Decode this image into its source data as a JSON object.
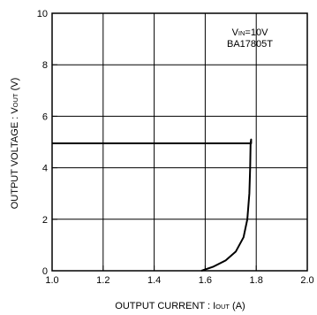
{
  "chart_data": {
    "type": "line",
    "xlabel": {
      "main": "OUTPUT  CURRENT : I",
      "sub": "OUT",
      "unit": " (A)"
    },
    "ylabel": {
      "main": "OUTPUT VOLTAGE : V",
      "sub": "OUT",
      "unit": " (V)"
    },
    "xlim": [
      1.0,
      2.0
    ],
    "ylim": [
      0,
      10
    ],
    "x_ticks": [
      "1.0",
      "1.2",
      "1.4",
      "1.6",
      "1.8",
      "2.0"
    ],
    "y_ticks": [
      "0",
      "2",
      "4",
      "6",
      "8",
      "10"
    ],
    "x_tick_values": [
      1.0,
      1.2,
      1.4,
      1.6,
      1.8,
      2.0
    ],
    "y_tick_values": [
      0,
      2,
      4,
      6,
      8,
      10
    ],
    "grid": true,
    "annotations": [
      {
        "main": "V",
        "sub": "IN",
        "rest": "=10V"
      },
      {
        "main": "BA17805T",
        "sub": "",
        "rest": ""
      }
    ],
    "series": [
      {
        "values": [
          {
            "x": 1.0,
            "y": 4.95
          },
          {
            "x": 1.78,
            "y": 4.95
          },
          {
            "x": 1.78,
            "y": 5.1
          },
          {
            "x": 1.778,
            "y": 4.95
          },
          {
            "x": 1.776,
            "y": 4.0
          },
          {
            "x": 1.773,
            "y": 3.0
          },
          {
            "x": 1.765,
            "y": 2.0
          },
          {
            "x": 1.75,
            "y": 1.3
          },
          {
            "x": 1.72,
            "y": 0.75
          },
          {
            "x": 1.68,
            "y": 0.4
          },
          {
            "x": 1.63,
            "y": 0.15
          },
          {
            "x": 1.585,
            "y": 0.0
          }
        ]
      }
    ]
  }
}
